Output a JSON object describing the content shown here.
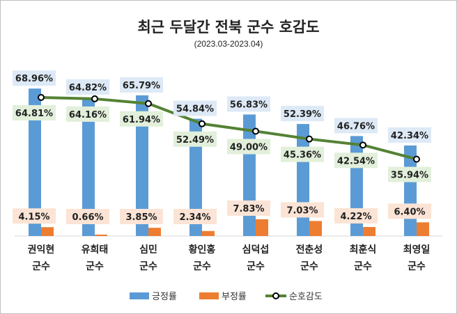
{
  "chart_data": {
    "type": "bar",
    "title": "최근 두달간 전북 군수 호감도",
    "subtitle": "(2023.03-2023.04)",
    "categories": [
      [
        "권익현",
        "군수"
      ],
      [
        "유희태",
        "군수"
      ],
      [
        "심민",
        "군수"
      ],
      [
        "황인홍",
        "군수"
      ],
      [
        "심덕섭",
        "군수"
      ],
      [
        "전춘성",
        "군수"
      ],
      [
        "최훈식",
        "군수"
      ],
      [
        "최영일",
        "군수"
      ]
    ],
    "series": [
      {
        "name": "긍정률",
        "kind": "bar",
        "color": "#5b9bd5",
        "label_bg": "#dde9f6",
        "values": [
          68.96,
          64.82,
          65.79,
          54.84,
          56.83,
          52.39,
          46.76,
          42.34
        ]
      },
      {
        "name": "부정률",
        "kind": "bar",
        "color": "#ed7d31",
        "label_bg": "#fbe4d5",
        "values": [
          4.15,
          0.66,
          3.85,
          2.34,
          7.83,
          7.03,
          4.22,
          6.4
        ]
      },
      {
        "name": "순호감도",
        "kind": "line",
        "color": "#548235",
        "label_bg": "#e2efda",
        "values": [
          64.81,
          64.16,
          61.94,
          52.49,
          49.0,
          45.36,
          42.54,
          35.94
        ]
      }
    ],
    "value_format": "%",
    "ylim": [
      0,
      70
    ],
    "grid": false,
    "legend": "bottom"
  }
}
